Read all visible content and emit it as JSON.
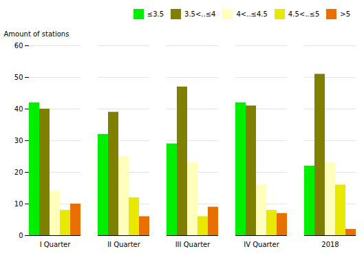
{
  "chart_data": {
    "type": "bar",
    "categories": [
      "I Quarter",
      "II Quarter",
      "III Quarter",
      "IV Quarter",
      "2018"
    ],
    "series": [
      {
        "name": "≤3.5",
        "color": "#00ee00",
        "values": [
          42,
          32,
          29,
          42,
          22
        ]
      },
      {
        "name": "3.5<..≤4",
        "color": "#808000",
        "values": [
          40,
          39,
          47,
          41,
          51
        ]
      },
      {
        "name": "4<..≤4.5",
        "color": "#ffffbb",
        "values": [
          14,
          25,
          23,
          16,
          23
        ]
      },
      {
        "name": "4.5<..≤5",
        "color": "#e8e800",
        "values": [
          8,
          12,
          6,
          8,
          16
        ]
      },
      {
        "name": ">5",
        "color": "#e87000",
        "values": [
          10,
          6,
          9,
          7,
          2
        ]
      }
    ],
    "ylabel": "Amount of stations",
    "ylim": [
      0,
      60
    ],
    "yticks": [
      0,
      10,
      20,
      30,
      40,
      50,
      60
    ],
    "grid": true,
    "legend": "upper right"
  }
}
